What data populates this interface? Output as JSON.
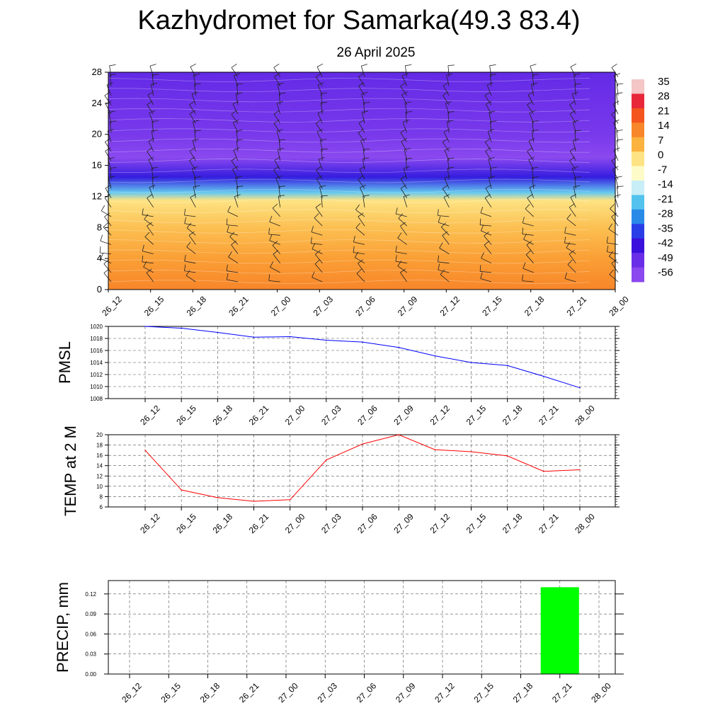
{
  "title": "Kazhydromet for Samarka(49.3 83.4)",
  "subtitle": "26 April 2025",
  "time_labels": [
    "26_12",
    "26_15",
    "26_18",
    "26_21",
    "27_00",
    "27_03",
    "27_06",
    "27_09",
    "27_12",
    "27_15",
    "27_18",
    "27_21",
    "28_00"
  ],
  "chart_data": [
    {
      "type": "heatmap",
      "panel": "temperature cross-section with wind barbs",
      "x": [
        "26_12",
        "26_15",
        "26_18",
        "26_21",
        "27_00",
        "27_03",
        "27_06",
        "27_09",
        "27_12",
        "27_15",
        "27_18",
        "27_21",
        "28_00"
      ],
      "yticks": [
        0,
        4,
        8,
        12,
        16,
        20,
        24,
        28
      ],
      "ylim": [
        0,
        28
      ],
      "colorbar": {
        "labels": [
          35,
          28,
          21,
          14,
          7,
          0,
          -7,
          -14,
          -21,
          -28,
          -35,
          -42,
          -49,
          -56
        ],
        "colors": [
          "#f4c6c6",
          "#e8283a",
          "#f4541e",
          "#f8862a",
          "#fbb23e",
          "#fde383",
          "#fdfcc8",
          "#c8eef8",
          "#53c3ee",
          "#2a8ae8",
          "#2a3ee8",
          "#3a10dc",
          "#6a2ee8",
          "#8a48ef"
        ]
      },
      "profile": [
        {
          "height": 0,
          "value": 14
        },
        {
          "height": 4,
          "value": 10
        },
        {
          "height": 8,
          "value": 5
        },
        {
          "height": 11.5,
          "value": 0
        },
        {
          "height": 12.5,
          "value": -20
        },
        {
          "height": 14.5,
          "value": -40
        },
        {
          "height": 17,
          "value": -56
        },
        {
          "height": 20,
          "value": -52
        },
        {
          "height": 24,
          "value": -50
        },
        {
          "height": 28,
          "value": -48
        }
      ]
    },
    {
      "type": "line",
      "ylabel": "PMSL",
      "x": [
        "26_12",
        "26_15",
        "26_18",
        "26_21",
        "27_00",
        "27_03",
        "27_06",
        "27_09",
        "27_12",
        "27_15",
        "27_18",
        "27_21",
        "28_00"
      ],
      "y": [
        1020,
        1019.7,
        1019,
        1018.2,
        1018.3,
        1017.7,
        1017.4,
        1016.5,
        1015.1,
        1014,
        1013.5,
        1011.7,
        1009.8
      ],
      "ylim": [
        1008,
        1020
      ],
      "yticks": [
        1008,
        1010,
        1012,
        1014,
        1016,
        1018,
        1020
      ],
      "color": "#0000ff"
    },
    {
      "type": "line",
      "ylabel": "TEMP at 2 M",
      "x": [
        "26_12",
        "26_15",
        "26_18",
        "26_21",
        "27_00",
        "27_03",
        "27_06",
        "27_09",
        "27_12",
        "27_15",
        "27_18",
        "27_21",
        "28_00"
      ],
      "y": [
        17,
        9.3,
        7.8,
        7.1,
        7.4,
        15.1,
        18.2,
        20,
        17.1,
        16.7,
        15.9,
        12.9,
        13.2
      ],
      "ylim": [
        6,
        20
      ],
      "yticks": [
        6,
        8,
        10,
        12,
        14,
        16,
        18,
        20
      ],
      "color": "#ff0000"
    },
    {
      "type": "bar",
      "ylabel": "PRECIP, mm",
      "categories": [
        "26_12",
        "26_15",
        "26_18",
        "26_21",
        "27_00",
        "27_03",
        "27_06",
        "27_09",
        "27_12",
        "27_15",
        "27_18",
        "27_21",
        "28_00"
      ],
      "values": [
        0,
        0,
        0,
        0,
        0,
        0,
        0,
        0,
        0,
        0,
        0,
        0.13,
        0
      ],
      "ylim": [
        0,
        0.14
      ],
      "yticks": [
        "0.00",
        "0.03",
        "0.06",
        "0.09",
        "0.12"
      ],
      "color": "#00ff00"
    }
  ]
}
